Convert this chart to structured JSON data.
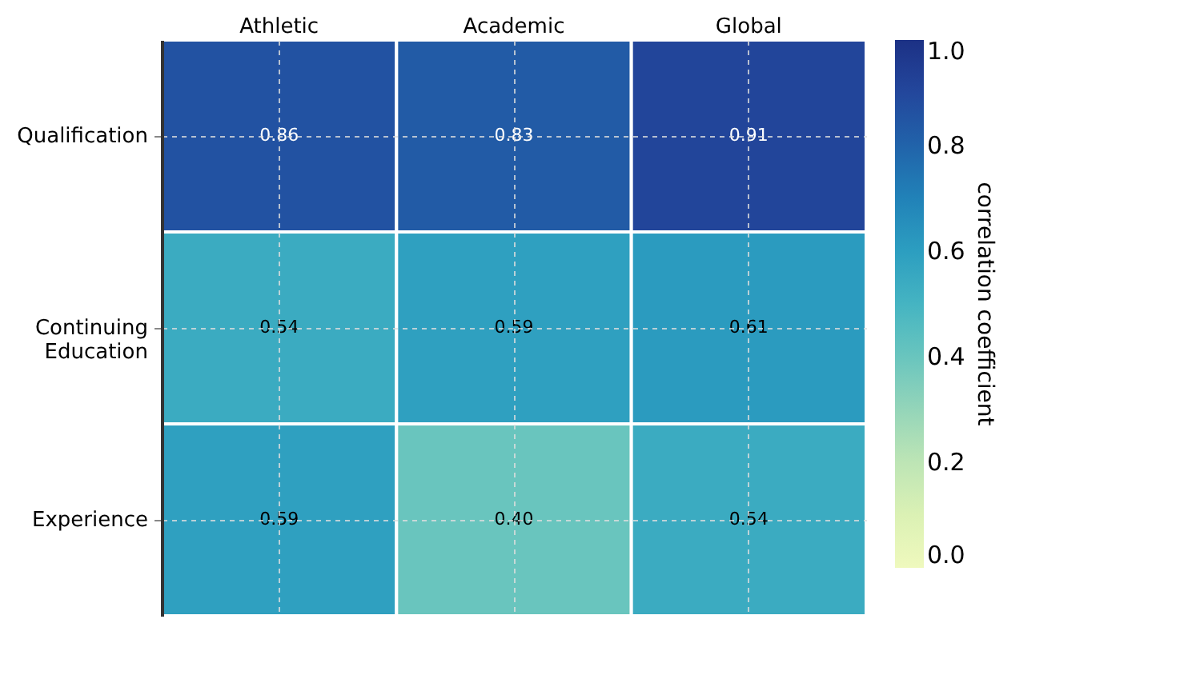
{
  "chart_data": {
    "type": "heatmap",
    "categories": [
      "Athletic",
      "Academic",
      "Global"
    ],
    "y_categories": [
      "Qualification",
      "Continuing Education",
      "Experience"
    ],
    "cells": [
      [
        0.86,
        0.83,
        0.91
      ],
      [
        0.54,
        0.59,
        0.61
      ],
      [
        0.59,
        0.4,
        0.54
      ]
    ],
    "cell_labels": [
      [
        "0.86",
        "0.83",
        "0.91"
      ],
      [
        "0.54",
        "0.59",
        "0.61"
      ],
      [
        "0.59",
        "0.40",
        "0.54"
      ]
    ],
    "clabel": "correlation coefficient",
    "clim": [
      0.0,
      1.0
    ],
    "cticks": [
      {
        "value": 0.0,
        "label": "0.0"
      },
      {
        "value": 0.2,
        "label": "0.2"
      },
      {
        "value": 0.4,
        "label": "0.4"
      },
      {
        "value": 0.6,
        "label": "0.6"
      },
      {
        "value": 0.8,
        "label": "0.8"
      },
      {
        "value": 1.0,
        "label": "1.0"
      }
    ],
    "grid": true
  }
}
